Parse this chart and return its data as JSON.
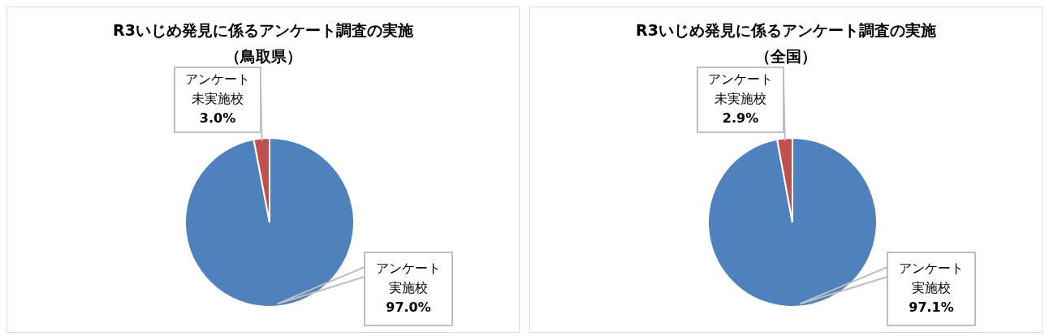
{
  "chart_data": [
    {
      "type": "pie",
      "title": "R3いじめ発見に係るアンケート調査の実施",
      "subtitle": "（鳥取県）",
      "categories": [
        "アンケート実施校",
        "アンケート未実施校"
      ],
      "values": [
        97.0,
        3.0
      ],
      "value_labels": [
        "97.0%",
        "3.0%"
      ],
      "colors": [
        "#4f81bd",
        "#c0504d"
      ],
      "legend": false
    },
    {
      "type": "pie",
      "title": "R3いじめ発見に係るアンケート調査の実施",
      "subtitle": "（全国）",
      "categories": [
        "アンケート実施校",
        "アンケート未実施校"
      ],
      "values": [
        97.1,
        2.9
      ],
      "value_labels": [
        "97.1%",
        "2.9%"
      ],
      "colors": [
        "#4f81bd",
        "#c0504d"
      ],
      "legend": false
    }
  ]
}
